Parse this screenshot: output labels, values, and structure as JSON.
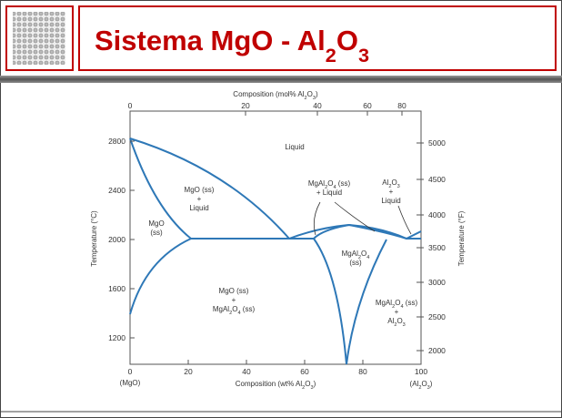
{
  "header": {
    "title": "Sistema  MgO - Al2O3"
  },
  "diagram": {
    "top_axis_title": "Composition (mol% Al2O3)",
    "top_ticks": [
      0,
      20,
      40,
      60,
      80
    ],
    "bottom_axis_title": "Composition (wt% Al2O3)",
    "bottom_ticks": [
      0,
      20,
      40,
      60,
      80,
      100
    ],
    "left_end_label": "(MgO)",
    "right_end_label": "(Al2O3)",
    "left_axis_title": "Temperature (°C)",
    "left_ticks": [
      1200,
      1600,
      2000,
      2400,
      2800
    ],
    "right_axis_title": "Temperature (°F)",
    "right_ticks": [
      2000,
      2500,
      3000,
      3500,
      4000,
      4500,
      5000
    ],
    "regions": [
      {
        "lines": [
          "Liquid"
        ]
      },
      {
        "lines": [
          "MgO (ss)",
          "+",
          "Liquid"
        ]
      },
      {
        "lines": [
          "MgO",
          "(ss)"
        ]
      },
      {
        "lines": [
          "MgAl2O4 (ss)",
          "+ Liquid"
        ]
      },
      {
        "lines": [
          "Al2O3",
          "+",
          "Liquid"
        ]
      },
      {
        "lines": [
          "MgAl2O4",
          "(ss)"
        ]
      },
      {
        "lines": [
          "MgO (ss)",
          "+",
          "MgAl2O4 (ss)"
        ]
      },
      {
        "lines": [
          "MgAl2O4 (ss)",
          "+",
          "Al2O3"
        ]
      }
    ]
  }
}
